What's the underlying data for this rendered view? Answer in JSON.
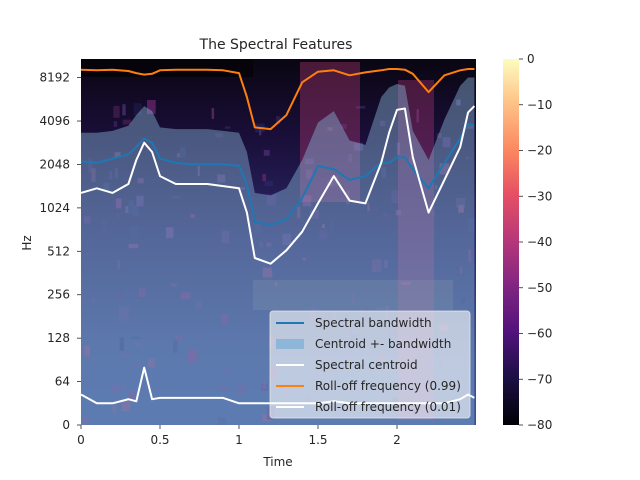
{
  "chart_data": {
    "type": "line",
    "title": "The Spectral Features",
    "xlabel": "Time",
    "ylabel": "Hz",
    "y_scale": "log2",
    "xlim": [
      0,
      2.5
    ],
    "ylim": [
      0,
      11025
    ],
    "x_ticks": [
      {
        "value": 0,
        "label": "0"
      },
      {
        "value": 0.5,
        "label": "0.5"
      },
      {
        "value": 1,
        "label": "1"
      },
      {
        "value": 1.5,
        "label": "1.5"
      },
      {
        "value": 2,
        "label": "2"
      }
    ],
    "y_ticks": [
      {
        "value": 0,
        "label": "0"
      },
      {
        "value": 64,
        "label": "64"
      },
      {
        "value": 128,
        "label": "128"
      },
      {
        "value": 256,
        "label": "256"
      },
      {
        "value": 512,
        "label": "512"
      },
      {
        "value": 1024,
        "label": "1024"
      },
      {
        "value": 2048,
        "label": "2048"
      },
      {
        "value": 4096,
        "label": "4096"
      },
      {
        "value": 8192,
        "label": "8192"
      }
    ],
    "x": [
      0,
      0.1,
      0.2,
      0.3,
      0.35,
      0.4,
      0.45,
      0.5,
      0.6,
      0.7,
      0.8,
      0.9,
      1.0,
      1.05,
      1.1,
      1.2,
      1.3,
      1.4,
      1.5,
      1.6,
      1.7,
      1.8,
      1.9,
      1.95,
      2.0,
      2.05,
      2.1,
      2.2,
      2.3,
      2.4,
      2.45,
      2.49
    ],
    "series": [
      {
        "name": "Spectral bandwidth",
        "color": "#1f77b4",
        "values": [
          2150,
          2100,
          2250,
          2400,
          2700,
          3100,
          2900,
          2250,
          2100,
          2050,
          2050,
          2050,
          2000,
          1500,
          820,
          780,
          850,
          1200,
          2000,
          1900,
          1600,
          1700,
          2100,
          2100,
          2300,
          2300,
          1900,
          1400,
          2100,
          3100,
          3900,
          3800
        ]
      },
      {
        "name": "Centroid +- bandwidth",
        "color": "#88b4d8",
        "lower": [
          0,
          0,
          0,
          0,
          0,
          0,
          0,
          0,
          0,
          0,
          0,
          0,
          0,
          0,
          0,
          0,
          0,
          0,
          0,
          0,
          0,
          0,
          0,
          0,
          0,
          0,
          0,
          0,
          0,
          0,
          0,
          0
        ],
        "upper": [
          3400,
          3400,
          3500,
          3800,
          4500,
          5200,
          4800,
          3700,
          3600,
          3600,
          3600,
          3500,
          3400,
          2500,
          1300,
          1250,
          1400,
          2200,
          4000,
          4800,
          3000,
          2800,
          6000,
          7000,
          7400,
          7200,
          3500,
          2200,
          4200,
          7200,
          8200,
          8200
        ]
      },
      {
        "name": "Spectral centroid",
        "color": "#ffffff",
        "values": [
          1300,
          1400,
          1300,
          1500,
          2200,
          2900,
          2500,
          1700,
          1500,
          1500,
          1500,
          1450,
          1400,
          950,
          460,
          420,
          520,
          700,
          1100,
          1700,
          1150,
          1100,
          2100,
          3400,
          4900,
          5000,
          2300,
          950,
          1600,
          2700,
          4700,
          5200
        ]
      },
      {
        "name": "Roll-off frequency (0.99)",
        "color": "#ff7f0e",
        "values": [
          9300,
          9200,
          9300,
          9100,
          8800,
          8600,
          8700,
          9200,
          9300,
          9300,
          9300,
          9200,
          8800,
          6000,
          3700,
          3600,
          4500,
          7600,
          9000,
          9200,
          8500,
          8900,
          9200,
          9400,
          9400,
          9300,
          8700,
          6500,
          8500,
          9200,
          9400,
          9400
        ]
      },
      {
        "name": "Roll-off frequency (0.01)",
        "color": "#ffffff",
        "values": [
          45,
          32,
          32,
          38,
          35,
          80,
          38,
          40,
          40,
          40,
          40,
          40,
          32,
          32,
          32,
          32,
          32,
          32,
          32,
          35,
          32,
          32,
          32,
          32,
          32,
          32,
          32,
          32,
          32,
          38,
          45,
          40
        ]
      }
    ],
    "colorbar": {
      "colormap": "magma",
      "range": [
        -80,
        0
      ],
      "ticks": [
        {
          "value": 0,
          "label": "0"
        },
        {
          "value": -10,
          "label": "−10"
        },
        {
          "value": -20,
          "label": "−20"
        },
        {
          "value": -30,
          "label": "−30"
        },
        {
          "value": -40,
          "label": "−40"
        },
        {
          "value": -50,
          "label": "−50"
        },
        {
          "value": -60,
          "label": "−60"
        },
        {
          "value": -70,
          "label": "−70"
        },
        {
          "value": -80,
          "label": "−80"
        }
      ]
    },
    "legend_position": "bottom-right",
    "grid": false
  }
}
